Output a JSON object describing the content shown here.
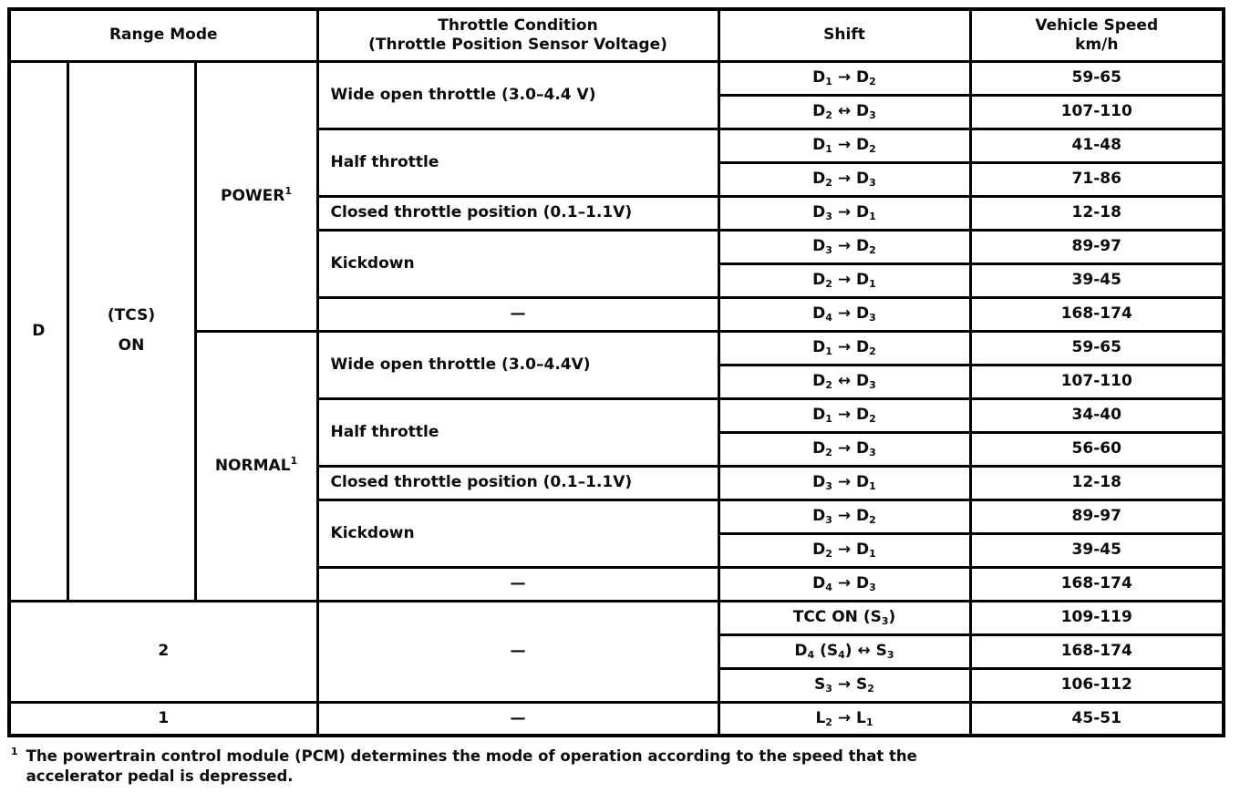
{
  "table": {
    "header": {
      "cells": [
        {
          "text": "Range Mode",
          "cs": 3,
          "kind": "header-range-mode"
        },
        {
          "text": "Throttle Condition\n(Throttle Position Sensor Voltage)",
          "kind": "header-throttle-condition"
        },
        {
          "text": "Shift",
          "kind": "header-shift"
        },
        {
          "text": "Vehicle Speed\nkm/h",
          "kind": "header-vehicle-speed"
        }
      ]
    },
    "rows": [
      {
        "cells": [
          {
            "text": "D",
            "rs": 16,
            "kind": "range"
          },
          {
            "text": "(TCS)\nON",
            "rs": 16,
            "kind": "tcs"
          },
          {
            "text": "POWER¹",
            "rs": 8,
            "kind": "mode"
          },
          {
            "text": "Wide open throttle (3.0–4.4 V)",
            "rs": 2,
            "kind": "throttle",
            "align": "left"
          },
          {
            "text": "D₁ → D₂",
            "kind": "shift"
          },
          {
            "text": "59-65",
            "kind": "speed"
          }
        ]
      },
      {
        "cells": [
          {
            "text": "D₂ ↔ D₃",
            "kind": "shift"
          },
          {
            "text": "107-110",
            "kind": "speed"
          }
        ]
      },
      {
        "cells": [
          {
            "text": "Half throttle",
            "rs": 2,
            "kind": "throttle",
            "align": "left"
          },
          {
            "text": "D₁ → D₂",
            "kind": "shift"
          },
          {
            "text": "41-48",
            "kind": "speed"
          }
        ]
      },
      {
        "cells": [
          {
            "text": "D₂ → D₃",
            "kind": "shift"
          },
          {
            "text": "71-86",
            "kind": "speed"
          }
        ]
      },
      {
        "cells": [
          {
            "text": "Closed throttle position (0.1–1.1V)",
            "kind": "throttle",
            "align": "left"
          },
          {
            "text": "D₃ → D₁",
            "kind": "shift"
          },
          {
            "text": "12-18",
            "kind": "speed"
          }
        ]
      },
      {
        "cells": [
          {
            "text": "Kickdown",
            "rs": 2,
            "kind": "throttle",
            "align": "left"
          },
          {
            "text": "D₃ → D₂",
            "kind": "shift"
          },
          {
            "text": "89-97",
            "kind": "speed"
          }
        ]
      },
      {
        "cells": [
          {
            "text": "D₂ → D₁",
            "kind": "shift"
          },
          {
            "text": "39-45",
            "kind": "speed"
          }
        ]
      },
      {
        "cells": [
          {
            "text": "—",
            "kind": "throttle"
          },
          {
            "text": "D₄ → D₃",
            "kind": "shift"
          },
          {
            "text": "168-174",
            "kind": "speed"
          }
        ]
      },
      {
        "cells": [
          {
            "text": "NORMAL¹",
            "rs": 8,
            "kind": "mode"
          },
          {
            "text": "Wide open throttle (3.0–4.4V)",
            "rs": 2,
            "kind": "throttle",
            "align": "left"
          },
          {
            "text": "D₁ → D₂",
            "kind": "shift"
          },
          {
            "text": "59-65",
            "kind": "speed"
          }
        ]
      },
      {
        "cells": [
          {
            "text": "D₂ ↔ D₃",
            "kind": "shift"
          },
          {
            "text": "107-110",
            "kind": "speed"
          }
        ]
      },
      {
        "cells": [
          {
            "text": "Half throttle",
            "rs": 2,
            "kind": "throttle",
            "align": "left"
          },
          {
            "text": "D₁ → D₂",
            "kind": "shift"
          },
          {
            "text": "34-40",
            "kind": "speed"
          }
        ]
      },
      {
        "cells": [
          {
            "text": "D₂ → D₃",
            "kind": "shift"
          },
          {
            "text": "56-60",
            "kind": "speed"
          }
        ]
      },
      {
        "cells": [
          {
            "text": "Closed throttle position (0.1–1.1V)",
            "kind": "throttle",
            "align": "left"
          },
          {
            "text": "D₃ → D₁",
            "kind": "shift"
          },
          {
            "text": "12-18",
            "kind": "speed"
          }
        ]
      },
      {
        "cells": [
          {
            "text": "Kickdown",
            "rs": 2,
            "kind": "throttle",
            "align": "left"
          },
          {
            "text": "D₃ → D₂",
            "kind": "shift"
          },
          {
            "text": "89-97",
            "kind": "speed"
          }
        ]
      },
      {
        "cells": [
          {
            "text": "D₂ → D₁",
            "kind": "shift"
          },
          {
            "text": "39-45",
            "kind": "speed"
          }
        ]
      },
      {
        "cells": [
          {
            "text": "—",
            "kind": "throttle"
          },
          {
            "text": "D₄ → D₃",
            "kind": "shift"
          },
          {
            "text": "168-174",
            "kind": "speed"
          }
        ]
      },
      {
        "cells": [
          {
            "text": "2",
            "cs": 3,
            "rs": 3,
            "kind": "range"
          },
          {
            "text": "—",
            "rs": 3,
            "kind": "throttle"
          },
          {
            "text": "TCC ON (S₃)",
            "kind": "shift"
          },
          {
            "text": "109-119",
            "kind": "speed"
          }
        ]
      },
      {
        "cells": [
          {
            "text": "D₄ (S₄) ↔ S₃",
            "kind": "shift"
          },
          {
            "text": "168-174",
            "kind": "speed"
          }
        ]
      },
      {
        "cells": [
          {
            "text": "S₃ → S₂",
            "kind": "shift"
          },
          {
            "text": "106-112",
            "kind": "speed"
          }
        ]
      },
      {
        "cells": [
          {
            "text": "1",
            "cs": 3,
            "kind": "range"
          },
          {
            "text": "—",
            "kind": "throttle"
          },
          {
            "text": "L₂ → L₁",
            "kind": "shift"
          },
          {
            "text": "45-51",
            "kind": "speed"
          }
        ]
      }
    ]
  },
  "footnote": {
    "marker": "¹",
    "text": "The powertrain control module (PCM) determines the mode of operation according to the speed that the\naccelerator pedal is depressed."
  }
}
